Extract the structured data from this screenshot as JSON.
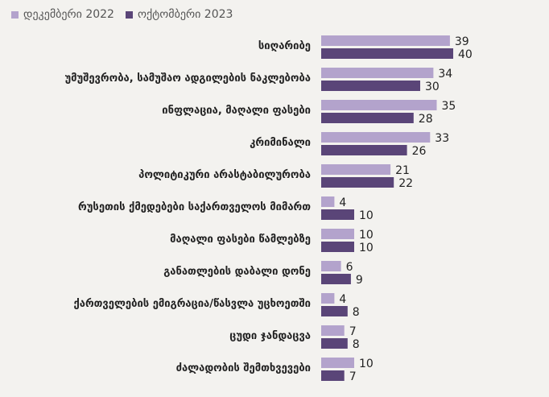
{
  "chart_data": {
    "type": "bar",
    "orientation": "horizontal",
    "categories": [
      "სიღარიბე",
      "უმუშევრობა, სამუშაო ადგილების ნაკლებობა",
      "ინფლაცია, მაღალი ფასები",
      "კრიმინალი",
      "პოლიტიკური არასტაბილურობა",
      "რუსეთის ქმედებები საქართველოს მიმართ",
      "მაღალი ფასები წამლებზე",
      "განათლების დაბალი დონე",
      "ქართველების ემიგრაცია/წასვლა უცხოეთში",
      "ცუდი ჯანდაცვა",
      "ძალადობის შემთხვევები"
    ],
    "series": [
      {
        "name": "დეკემბერი 2022",
        "color": "#b3a3cc",
        "values": [
          39,
          34,
          35,
          33,
          21,
          4,
          10,
          6,
          4,
          7,
          10
        ]
      },
      {
        "name": "ოქტომბერი 2023",
        "color": "#5a4578",
        "values": [
          40,
          30,
          28,
          26,
          22,
          10,
          10,
          9,
          8,
          8,
          7
        ]
      }
    ],
    "xlim": [
      0,
      45
    ],
    "legend": "top-left",
    "grid": false
  }
}
